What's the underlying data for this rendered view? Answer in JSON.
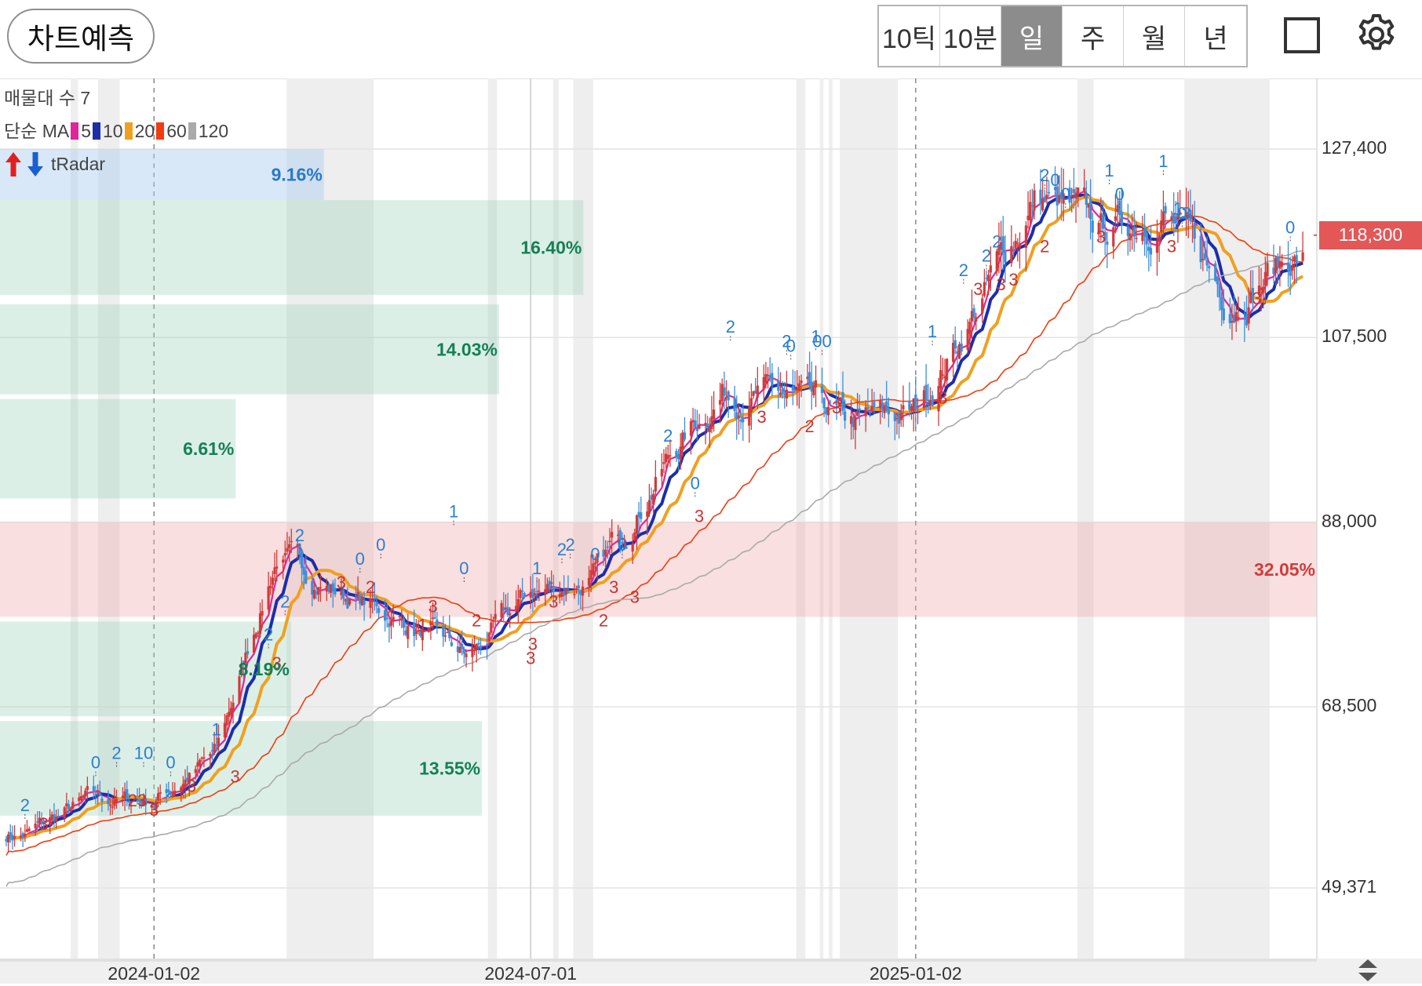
{
  "toolbar": {
    "predict_label": "차트예측",
    "periods": [
      {
        "label": "10틱",
        "active": false
      },
      {
        "label": "10분",
        "active": false
      },
      {
        "label": "일",
        "active": true
      },
      {
        "label": "주",
        "active": false
      },
      {
        "label": "월",
        "active": false
      },
      {
        "label": "년",
        "active": false
      }
    ]
  },
  "legend": {
    "volume_profile": "매물대 수 7",
    "ma_prefix": "단순 MA",
    "ma": [
      {
        "label": "5",
        "color": "#e0269b"
      },
      {
        "label": "10",
        "color": "#1b2eaa"
      },
      {
        "label": "20",
        "color": "#f0a020"
      },
      {
        "label": "60",
        "color": "#f23c10"
      },
      {
        "label": "120",
        "color": "#aaaaaa"
      }
    ],
    "radar": "tRadar"
  },
  "current_price": "118,300",
  "colors": {
    "up": "#d03b3b",
    "down": "#3d8ed8",
    "current": "#e35757"
  },
  "chart_data": {
    "type": "candlestick",
    "y_axis": {
      "ticks": [
        "127,400",
        "107,500",
        "88,000",
        "68,500",
        "49,371"
      ],
      "tick_values": [
        127400,
        107500,
        88000,
        68500,
        49371
      ],
      "ylim": [
        49371,
        127400
      ],
      "side": "right"
    },
    "x_axis": {
      "ticks": [
        {
          "label": "2024-01-02",
          "date": "2024-01-02"
        },
        {
          "label": "2024-07-01",
          "date": "2024-07-01"
        },
        {
          "label": "2025-01-02",
          "date": "2025-01-02"
        }
      ]
    },
    "price_path": [
      {
        "date": "2023-11-01",
        "close": 55000
      },
      {
        "date": "2023-12-01",
        "close": 58500
      },
      {
        "date": "2024-01-02",
        "close": 58700
      },
      {
        "date": "2024-02-01",
        "close": 63500
      },
      {
        "date": "2024-03-01",
        "close": 84500
      },
      {
        "date": "2024-04-01",
        "close": 80500
      },
      {
        "date": "2024-05-01",
        "close": 77500
      },
      {
        "date": "2024-06-01",
        "close": 73500
      },
      {
        "date": "2024-07-01",
        "close": 80500
      },
      {
        "date": "2024-08-01",
        "close": 82000
      },
      {
        "date": "2024-09-01",
        "close": 93500
      },
      {
        "date": "2024-10-01",
        "close": 102000
      },
      {
        "date": "2024-11-01",
        "close": 101000
      },
      {
        "date": "2024-12-01",
        "close": 98000
      },
      {
        "date": "2025-01-02",
        "close": 99500
      },
      {
        "date": "2025-02-01",
        "close": 111000
      },
      {
        "date": "2025-03-01",
        "close": 122500
      },
      {
        "date": "2025-04-01",
        "close": 118500
      },
      {
        "date": "2025-05-01",
        "close": 121000
      },
      {
        "date": "2025-06-01",
        "close": 111500
      },
      {
        "date": "2025-07-01",
        "close": 116000
      }
    ],
    "moving_averages": [
      {
        "period": "5",
        "color": "#e0269b"
      },
      {
        "period": "10",
        "color": "#1b2eaa"
      },
      {
        "period": "20",
        "color": "#f0a020"
      },
      {
        "period": "60",
        "color": "#f23c10"
      },
      {
        "period": "120",
        "color": "#aaaaaa"
      }
    ],
    "volume_profile": [
      {
        "low": 122000,
        "high": 127400,
        "label": "9.16%",
        "tone": "blue"
      },
      {
        "low": 112000,
        "high": 122000,
        "label": "16.40%",
        "tone": "green"
      },
      {
        "low": 101500,
        "high": 111000,
        "label": "14.03%",
        "tone": "green"
      },
      {
        "low": 90500,
        "high": 101000,
        "label": "6.61%",
        "tone": "green"
      },
      {
        "low": 78000,
        "high": 88000,
        "label": "32.05%",
        "tone": "red"
      },
      {
        "low": 67500,
        "high": 77500,
        "label": "8.19%",
        "tone": "green"
      },
      {
        "low": 57000,
        "high": 67000,
        "label": "13.55%",
        "tone": "green"
      }
    ],
    "markers": [
      {
        "date": "2023-11-01",
        "price": 57500,
        "label": "2",
        "side": "top"
      },
      {
        "date": "2023-11-10",
        "price": 55500,
        "label": "3",
        "side": "bottom"
      },
      {
        "date": "2023-12-05",
        "price": 62000,
        "label": "0",
        "side": "top"
      },
      {
        "date": "2023-12-15",
        "price": 63000,
        "label": "2",
        "side": "top"
      },
      {
        "date": "2023-12-28",
        "price": 63000,
        "label": "10",
        "side": "top"
      },
      {
        "date": "2023-12-25",
        "price": 58000,
        "label": "23",
        "side": "bottom"
      },
      {
        "date": "2024-01-02",
        "price": 57000,
        "label": "3",
        "side": "bottom"
      },
      {
        "date": "2024-01-10",
        "price": 62000,
        "label": "0",
        "side": "top"
      },
      {
        "date": "2024-01-20",
        "price": 59500,
        "label": "3",
        "side": "bottom"
      },
      {
        "date": "2024-02-01",
        "price": 65500,
        "label": "1",
        "side": "top"
      },
      {
        "date": "2024-02-10",
        "price": 60500,
        "label": "3",
        "side": "bottom"
      },
      {
        "date": "2024-03-01",
        "price": 72500,
        "label": "3",
        "side": "bottom"
      },
      {
        "date": "2024-02-26",
        "price": 75500,
        "label": "2",
        "side": "top"
      },
      {
        "date": "2024-03-05",
        "price": 79000,
        "label": "2",
        "side": "top"
      },
      {
        "date": "2024-03-12",
        "price": 86000,
        "label": "2",
        "side": "top"
      },
      {
        "date": "2024-04-01",
        "price": 81000,
        "label": "3",
        "side": "bottom"
      },
      {
        "date": "2024-04-10",
        "price": 83500,
        "label": "0",
        "side": "top"
      },
      {
        "date": "2024-04-15",
        "price": 80500,
        "label": "2",
        "side": "bottom"
      },
      {
        "date": "2024-04-20",
        "price": 85000,
        "label": "0",
        "side": "top"
      },
      {
        "date": "2024-05-10",
        "price": 76500,
        "label": "1",
        "side": "bottom"
      },
      {
        "date": "2024-05-15",
        "price": 78500,
        "label": "3",
        "side": "bottom"
      },
      {
        "date": "2024-05-25",
        "price": 88500,
        "label": "1",
        "side": "top"
      },
      {
        "date": "2024-05-30",
        "price": 82500,
        "label": "0",
        "side": "top"
      },
      {
        "date": "2024-06-05",
        "price": 77000,
        "label": "2",
        "side": "bottom"
      },
      {
        "date": "2024-07-01",
        "price": 73000,
        "label": "3",
        "side": "bottom"
      },
      {
        "date": "2024-07-02",
        "price": 74500,
        "label": "3",
        "side": "bottom"
      },
      {
        "date": "2024-07-04",
        "price": 82500,
        "label": "1",
        "side": "top"
      },
      {
        "date": "2024-07-12",
        "price": 79000,
        "label": "3",
        "side": "bottom"
      },
      {
        "date": "2024-07-16",
        "price": 84500,
        "label": "2",
        "side": "top"
      },
      {
        "date": "2024-07-20",
        "price": 85000,
        "label": "2",
        "side": "top"
      },
      {
        "date": "2024-08-01",
        "price": 84000,
        "label": "0",
        "side": "top"
      },
      {
        "date": "2024-08-05",
        "price": 77000,
        "label": "2",
        "side": "bottom"
      },
      {
        "date": "2024-08-10",
        "price": 80500,
        "label": "3",
        "side": "bottom"
      },
      {
        "date": "2024-08-14",
        "price": 85000,
        "label": "0",
        "side": "top"
      },
      {
        "date": "2024-08-20",
        "price": 79500,
        "label": "3",
        "side": "bottom"
      },
      {
        "date": "2024-09-05",
        "price": 96500,
        "label": "2",
        "side": "top"
      },
      {
        "date": "2024-09-18",
        "price": 91500,
        "label": "0",
        "side": "top"
      },
      {
        "date": "2024-09-20",
        "price": 88000,
        "label": "3",
        "side": "bottom"
      },
      {
        "date": "2024-10-05",
        "price": 108000,
        "label": "2",
        "side": "top"
      },
      {
        "date": "2024-10-20",
        "price": 98500,
        "label": "3",
        "side": "bottom"
      },
      {
        "date": "2024-11-01",
        "price": 106500,
        "label": "2",
        "side": "top"
      },
      {
        "date": "2024-11-03",
        "price": 106000,
        "label": "0",
        "side": "top"
      },
      {
        "date": "2024-11-15",
        "price": 107000,
        "label": "1",
        "side": "top"
      },
      {
        "date": "2024-11-18",
        "price": 106500,
        "label": "00",
        "side": "top"
      },
      {
        "date": "2024-11-12",
        "price": 97500,
        "label": "2",
        "side": "bottom"
      },
      {
        "date": "2024-11-25",
        "price": 99500,
        "label": "3",
        "side": "bottom"
      },
      {
        "date": "2025-01-10",
        "price": 107500,
        "label": "1",
        "side": "top"
      },
      {
        "date": "2025-01-15",
        "price": 100500,
        "label": "3",
        "side": "bottom"
      },
      {
        "date": "2025-02-01",
        "price": 112000,
        "label": "3",
        "side": "bottom"
      },
      {
        "date": "2025-01-25",
        "price": 114000,
        "label": "2",
        "side": "top"
      },
      {
        "date": "2025-02-05",
        "price": 115500,
        "label": "2",
        "side": "top"
      },
      {
        "date": "2025-02-10",
        "price": 117000,
        "label": "2",
        "side": "top"
      },
      {
        "date": "2025-02-12",
        "price": 112500,
        "label": "3",
        "side": "bottom"
      },
      {
        "date": "2025-02-18",
        "price": 113000,
        "label": "3",
        "side": "bottom"
      },
      {
        "date": "2025-03-05",
        "price": 124000,
        "label": "2",
        "side": "top"
      },
      {
        "date": "2025-03-10",
        "price": 123500,
        "label": "0",
        "side": "top"
      },
      {
        "date": "2025-03-15",
        "price": 122000,
        "label": "0",
        "side": "top"
      },
      {
        "date": "2025-03-05",
        "price": 116500,
        "label": "2",
        "side": "bottom"
      },
      {
        "date": "2025-04-01",
        "price": 117500,
        "label": "3",
        "side": "bottom"
      },
      {
        "date": "2025-04-05",
        "price": 124500,
        "label": "1",
        "side": "top"
      },
      {
        "date": "2025-04-10",
        "price": 122000,
        "label": "0",
        "side": "top"
      },
      {
        "date": "2025-05-01",
        "price": 125500,
        "label": "1",
        "side": "top"
      },
      {
        "date": "2025-05-10",
        "price": 120000,
        "label": "0",
        "side": "top"
      },
      {
        "date": "2025-05-05",
        "price": 116500,
        "label": "3",
        "side": "bottom"
      },
      {
        "date": "2025-05-08",
        "price": 120500,
        "label": "1",
        "side": "top"
      },
      {
        "date": "2025-05-12",
        "price": 120000,
        "label": "3",
        "side": "top"
      },
      {
        "date": "2025-06-15",
        "price": 111000,
        "label": "3",
        "side": "bottom"
      },
      {
        "date": "2025-07-01",
        "price": 118500,
        "label": "0",
        "side": "top"
      }
    ]
  }
}
